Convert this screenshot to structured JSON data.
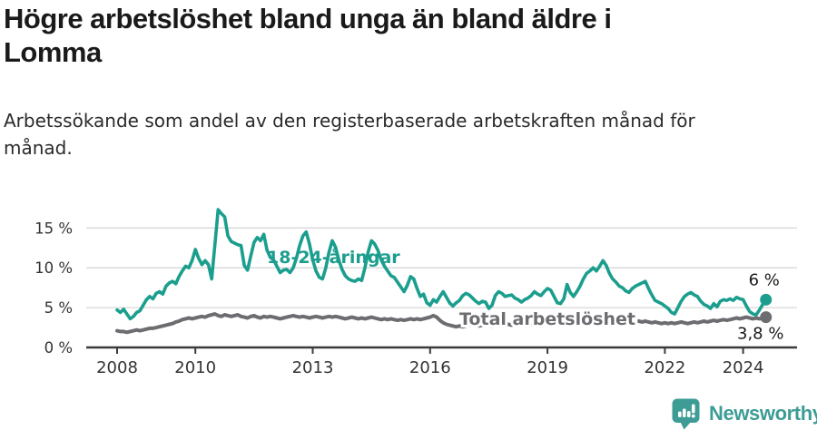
{
  "header": {
    "title": "Högre arbetslöshet bland unga än bland äldre i Lomma",
    "title_line1": "Högre arbetslöshet bland unga än bland äldre i",
    "title_line2": "Lomma",
    "subtitle": "Arbetssökande som andel av den registerbaserade arbetskraften månad för månad.",
    "subtitle_line1": "Arbetssökande som andel av den registerbaserade arbetskraften månad för",
    "subtitle_line2": "månad."
  },
  "footer": {
    "brand": "Newsworthy"
  },
  "colors": {
    "young_line": "#1b9e8e",
    "total_line": "#6d6d71",
    "axis": "#3b3b3b",
    "grid": "#d8d8d8",
    "tick_text": "#333333",
    "end_label_text": "#1a1a1a",
    "brand": "#3d9c95",
    "background": "#ffffff"
  },
  "chart_data": {
    "type": "line",
    "title": "Högre arbetslöshet bland unga än bland äldre i Lomma",
    "subtitle": "Arbetssökande som andel av den registerbaserade arbetskraften månad för månad.",
    "x_start": "2008-01",
    "x_end": "2024-08",
    "x_interval": "monthly",
    "ylim": [
      0,
      17.5
    ],
    "grid": "horizontal-only",
    "legend": "inline-labels",
    "y_ticks": [
      {
        "value": 0,
        "label": "0 %"
      },
      {
        "value": 5,
        "label": "5 %"
      },
      {
        "value": 10,
        "label": "10 %"
      },
      {
        "value": 15,
        "label": "15 %"
      }
    ],
    "x_ticks": [
      {
        "year": 2008,
        "label": "2008"
      },
      {
        "year": 2010,
        "label": "2010"
      },
      {
        "year": 2013,
        "label": "2013"
      },
      {
        "year": 2016,
        "label": "2016"
      },
      {
        "year": 2019,
        "label": "2019"
      },
      {
        "year": 2022,
        "label": "2022"
      },
      {
        "year": 2024,
        "label": "2024"
      }
    ],
    "series": [
      {
        "name": "18-24-åringar",
        "color": "#1b9e8e",
        "end_label": "6 %",
        "end_value": 6.0,
        "values": [
          4.7,
          4.4,
          4.8,
          4.2,
          3.6,
          3.9,
          4.4,
          4.6,
          5.3,
          6.0,
          6.4,
          6.1,
          6.8,
          7.0,
          6.7,
          7.7,
          8.1,
          8.3,
          8.0,
          8.9,
          9.6,
          10.2,
          10.0,
          10.9,
          12.3,
          11.2,
          10.4,
          10.9,
          10.4,
          8.6,
          13.0,
          17.3,
          16.8,
          16.4,
          14.0,
          13.3,
          13.1,
          12.9,
          12.8,
          10.3,
          9.7,
          11.5,
          13.2,
          13.8,
          13.4,
          14.2,
          12.2,
          11.3,
          11.0,
          10.2,
          9.4,
          9.7,
          9.8,
          9.4,
          10.0,
          11.2,
          12.8,
          14.0,
          14.5,
          13.0,
          11.0,
          9.6,
          8.8,
          8.6,
          10.0,
          12.0,
          13.4,
          12.6,
          11.0,
          9.8,
          9.0,
          8.6,
          8.4,
          8.3,
          8.6,
          8.4,
          10.0,
          12.0,
          13.4,
          13.0,
          12.2,
          11.0,
          10.2,
          9.6,
          9.0,
          8.8,
          8.2,
          7.6,
          7.0,
          7.8,
          8.9,
          8.6,
          7.4,
          6.4,
          6.7,
          5.6,
          5.3,
          6.0,
          5.7,
          6.4,
          7.0,
          6.3,
          5.6,
          5.2,
          5.6,
          5.9,
          6.5,
          6.8,
          6.6,
          6.2,
          5.8,
          5.5,
          5.8,
          5.7,
          4.9,
          5.3,
          6.5,
          7.0,
          6.8,
          6.4,
          6.5,
          6.6,
          6.2,
          6.0,
          5.7,
          6.0,
          6.2,
          6.5,
          7.0,
          6.7,
          6.5,
          7.0,
          7.4,
          7.2,
          6.4,
          5.6,
          5.5,
          6.1,
          7.9,
          6.9,
          6.4,
          7.0,
          7.7,
          8.6,
          9.3,
          9.6,
          10.0,
          9.6,
          10.2,
          10.9,
          10.3,
          9.3,
          8.6,
          8.2,
          7.7,
          7.5,
          7.1,
          6.9,
          7.4,
          7.7,
          7.9,
          8.1,
          8.3,
          7.4,
          6.6,
          5.9,
          5.7,
          5.5,
          5.2,
          4.9,
          4.4,
          4.2,
          5.0,
          5.8,
          6.4,
          6.7,
          6.9,
          6.6,
          6.4,
          5.8,
          5.4,
          5.2,
          4.9,
          5.5,
          5.1,
          5.8,
          6.0,
          5.9,
          6.1,
          5.9,
          6.3,
          6.1,
          6.0,
          5.2,
          4.5,
          4.2,
          4.1,
          4.7,
          5.4,
          6.0
        ]
      },
      {
        "name": "Total arbetslöshet",
        "color": "#6d6d71",
        "end_label": "3,8 %",
        "end_value": 3.8,
        "values": [
          2.1,
          2.0,
          2.0,
          1.9,
          2.0,
          2.1,
          2.2,
          2.1,
          2.2,
          2.3,
          2.4,
          2.4,
          2.5,
          2.6,
          2.7,
          2.8,
          2.9,
          3.0,
          3.2,
          3.3,
          3.5,
          3.6,
          3.7,
          3.6,
          3.7,
          3.8,
          3.9,
          3.8,
          4.0,
          4.1,
          4.2,
          4.0,
          3.9,
          4.1,
          4.0,
          3.9,
          4.0,
          4.1,
          3.9,
          3.8,
          3.7,
          3.9,
          4.0,
          3.8,
          3.7,
          3.9,
          3.8,
          3.9,
          3.8,
          3.7,
          3.6,
          3.7,
          3.8,
          3.9,
          4.0,
          3.9,
          3.8,
          3.9,
          3.8,
          3.7,
          3.8,
          3.9,
          3.8,
          3.7,
          3.8,
          3.9,
          3.8,
          3.9,
          3.8,
          3.7,
          3.6,
          3.7,
          3.8,
          3.7,
          3.6,
          3.7,
          3.6,
          3.7,
          3.8,
          3.7,
          3.6,
          3.5,
          3.6,
          3.5,
          3.6,
          3.5,
          3.4,
          3.5,
          3.4,
          3.5,
          3.6,
          3.5,
          3.6,
          3.5,
          3.6,
          3.7,
          3.8,
          4.0,
          3.8,
          3.4,
          3.1,
          2.9,
          2.8,
          2.7,
          2.6,
          2.7,
          2.6,
          2.7,
          2.8,
          2.9,
          2.8,
          2.7,
          2.8,
          2.9,
          2.8,
          2.7,
          2.8,
          2.9,
          2.8,
          2.9,
          2.9,
          2.8,
          2.9,
          2.8,
          2.9,
          3.0,
          2.9,
          2.8,
          2.9,
          3.0,
          2.9,
          3.0,
          3.0,
          2.9,
          3.0,
          2.9,
          3.0,
          3.1,
          3.0,
          3.1,
          3.0,
          3.1,
          3.2,
          3.3,
          3.4,
          3.5,
          3.6,
          3.8,
          3.9,
          3.8,
          3.7,
          3.6,
          3.7,
          3.6,
          3.5,
          3.6,
          3.7,
          3.6,
          3.5,
          3.4,
          3.3,
          3.2,
          3.3,
          3.2,
          3.1,
          3.2,
          3.1,
          3.0,
          3.1,
          3.0,
          3.1,
          3.0,
          3.1,
          3.2,
          3.1,
          3.0,
          3.1,
          3.2,
          3.1,
          3.2,
          3.3,
          3.2,
          3.3,
          3.4,
          3.3,
          3.4,
          3.5,
          3.4,
          3.5,
          3.6,
          3.7,
          3.6,
          3.7,
          3.8,
          3.7,
          3.6,
          3.7,
          3.6,
          3.7,
          3.8
        ]
      }
    ]
  }
}
